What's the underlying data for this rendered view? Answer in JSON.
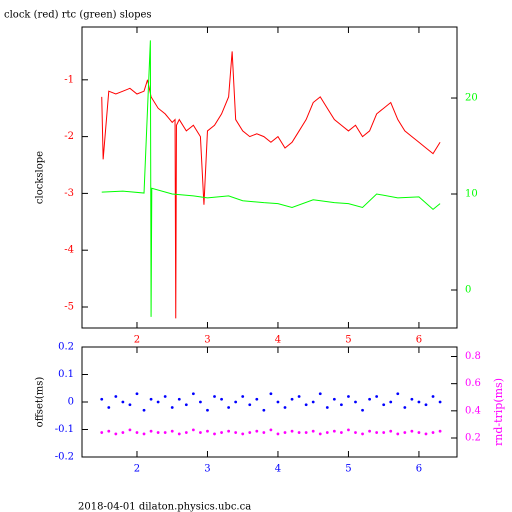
{
  "chart_data": [
    {
      "type": "line",
      "title": "clock (red) rtc (green) slopes",
      "ylabel": "clockslope",
      "xlim": [
        1.22,
        6.54
      ],
      "xticks": [
        2,
        3,
        4,
        5,
        6
      ],
      "ylim": [
        -5.37,
        -0.07
      ],
      "yticks": [
        -5,
        -4,
        -3,
        -2,
        -1
      ],
      "y2lim": [
        -3.96,
        27.4
      ],
      "y2ticks": [
        0,
        10,
        20
      ],
      "series": [
        {
          "color": "#ff0000",
          "axis": "y",
          "x": [
            1.5,
            1.52,
            1.6,
            1.7,
            1.8,
            1.9,
            2.0,
            2.1,
            2.15,
            2.2,
            2.3,
            2.4,
            2.5,
            2.54,
            2.55,
            2.56,
            2.6,
            2.7,
            2.8,
            2.9,
            2.95,
            3.0,
            3.1,
            3.2,
            3.3,
            3.35,
            3.4,
            3.5,
            3.6,
            3.7,
            3.8,
            3.9,
            4.0,
            4.1,
            4.2,
            4.3,
            4.4,
            4.5,
            4.6,
            4.7,
            4.8,
            4.9,
            5.0,
            5.1,
            5.2,
            5.3,
            5.4,
            5.5,
            5.6,
            5.7,
            5.8,
            5.9,
            6.0,
            6.1,
            6.2,
            6.3
          ],
          "values": [
            -1.3,
            -2.4,
            -1.2,
            -1.25,
            -1.2,
            -1.15,
            -1.25,
            -1.2,
            -1.0,
            -1.3,
            -1.5,
            -1.6,
            -1.75,
            -1.7,
            -5.2,
            -1.8,
            -1.7,
            -1.9,
            -1.8,
            -2.0,
            -3.2,
            -1.9,
            -1.8,
            -1.6,
            -1.3,
            -0.5,
            -1.7,
            -1.9,
            -2.0,
            -1.95,
            -2.0,
            -2.1,
            -2.0,
            -2.2,
            -2.1,
            -1.9,
            -1.7,
            -1.4,
            -1.3,
            -1.5,
            -1.7,
            -1.8,
            -1.9,
            -1.8,
            -2.0,
            -1.9,
            -1.6,
            -1.5,
            -1.4,
            -1.7,
            -1.9,
            -2.0,
            -2.1,
            -2.2,
            -2.3,
            -2.1
          ]
        },
        {
          "color": "#00ff00",
          "axis": "y2",
          "x": [
            1.5,
            1.8,
            2.1,
            2.19,
            2.2,
            2.21,
            2.5,
            2.8,
            3.0,
            3.3,
            3.5,
            3.8,
            4.0,
            4.2,
            4.5,
            4.8,
            5.0,
            5.2,
            5.4,
            5.7,
            6.0,
            6.2,
            6.3
          ],
          "values": [
            10.2,
            10.3,
            10.1,
            26.0,
            -2.8,
            10.6,
            10.0,
            9.8,
            9.6,
            9.8,
            9.3,
            9.1,
            9.0,
            8.6,
            9.4,
            9.1,
            9.0,
            8.6,
            10.0,
            9.6,
            9.7,
            8.4,
            9.0
          ]
        }
      ]
    },
    {
      "type": "scatter",
      "ylabel": "offset(ms)",
      "y2label": "rnd-trip(ms)",
      "xlim": [
        1.22,
        6.54
      ],
      "xticks": [
        2,
        3,
        4,
        5,
        6
      ],
      "ylim": [
        -0.2,
        0.2
      ],
      "yticks": [
        -0.2,
        -0.1,
        0,
        0.1,
        0.2
      ],
      "y2lim": [
        0.06,
        0.87
      ],
      "y2ticks": [
        0.2,
        0.4,
        0.6,
        0.8
      ],
      "x": [
        1.5,
        1.6,
        1.7,
        1.8,
        1.9,
        2.0,
        2.1,
        2.2,
        2.3,
        2.4,
        2.5,
        2.6,
        2.7,
        2.8,
        2.9,
        3.0,
        3.1,
        3.2,
        3.3,
        3.4,
        3.5,
        3.6,
        3.7,
        3.8,
        3.9,
        4.0,
        4.1,
        4.2,
        4.3,
        4.4,
        4.5,
        4.6,
        4.7,
        4.8,
        4.9,
        5.0,
        5.1,
        5.2,
        5.3,
        5.4,
        5.5,
        5.6,
        5.7,
        5.8,
        5.9,
        6.0,
        6.1,
        6.2,
        6.3
      ],
      "series": [
        {
          "color": "#0000ff",
          "axis": "y",
          "values": [
            0.01,
            -0.02,
            0.02,
            0.0,
            -0.01,
            0.03,
            -0.03,
            0.01,
            0.0,
            0.02,
            -0.02,
            0.01,
            -0.01,
            0.03,
            0.0,
            -0.03,
            0.02,
            0.01,
            -0.02,
            0.0,
            0.02,
            -0.01,
            0.01,
            -0.03,
            0.03,
            0.0,
            -0.02,
            0.01,
            0.02,
            -0.01,
            0.0,
            0.03,
            -0.02,
            0.01,
            -0.01,
            0.02,
            0.0,
            -0.03,
            0.01,
            0.02,
            -0.01,
            0.0,
            0.03,
            -0.02,
            0.01,
            0.0,
            -0.01,
            0.02,
            0.0
          ]
        },
        {
          "color": "#ff00ff",
          "axis": "y2",
          "values": [
            0.24,
            0.25,
            0.23,
            0.24,
            0.26,
            0.24,
            0.23,
            0.25,
            0.24,
            0.24,
            0.25,
            0.23,
            0.24,
            0.26,
            0.24,
            0.25,
            0.23,
            0.24,
            0.25,
            0.24,
            0.23,
            0.24,
            0.25,
            0.24,
            0.26,
            0.23,
            0.24,
            0.25,
            0.24,
            0.24,
            0.25,
            0.23,
            0.24,
            0.25,
            0.24,
            0.26,
            0.24,
            0.23,
            0.25,
            0.24,
            0.24,
            0.25,
            0.23,
            0.24,
            0.25,
            0.24,
            0.23,
            0.24,
            0.25
          ]
        }
      ]
    }
  ],
  "footer": "2018-04-01 dilaton.physics.ubc.ca"
}
